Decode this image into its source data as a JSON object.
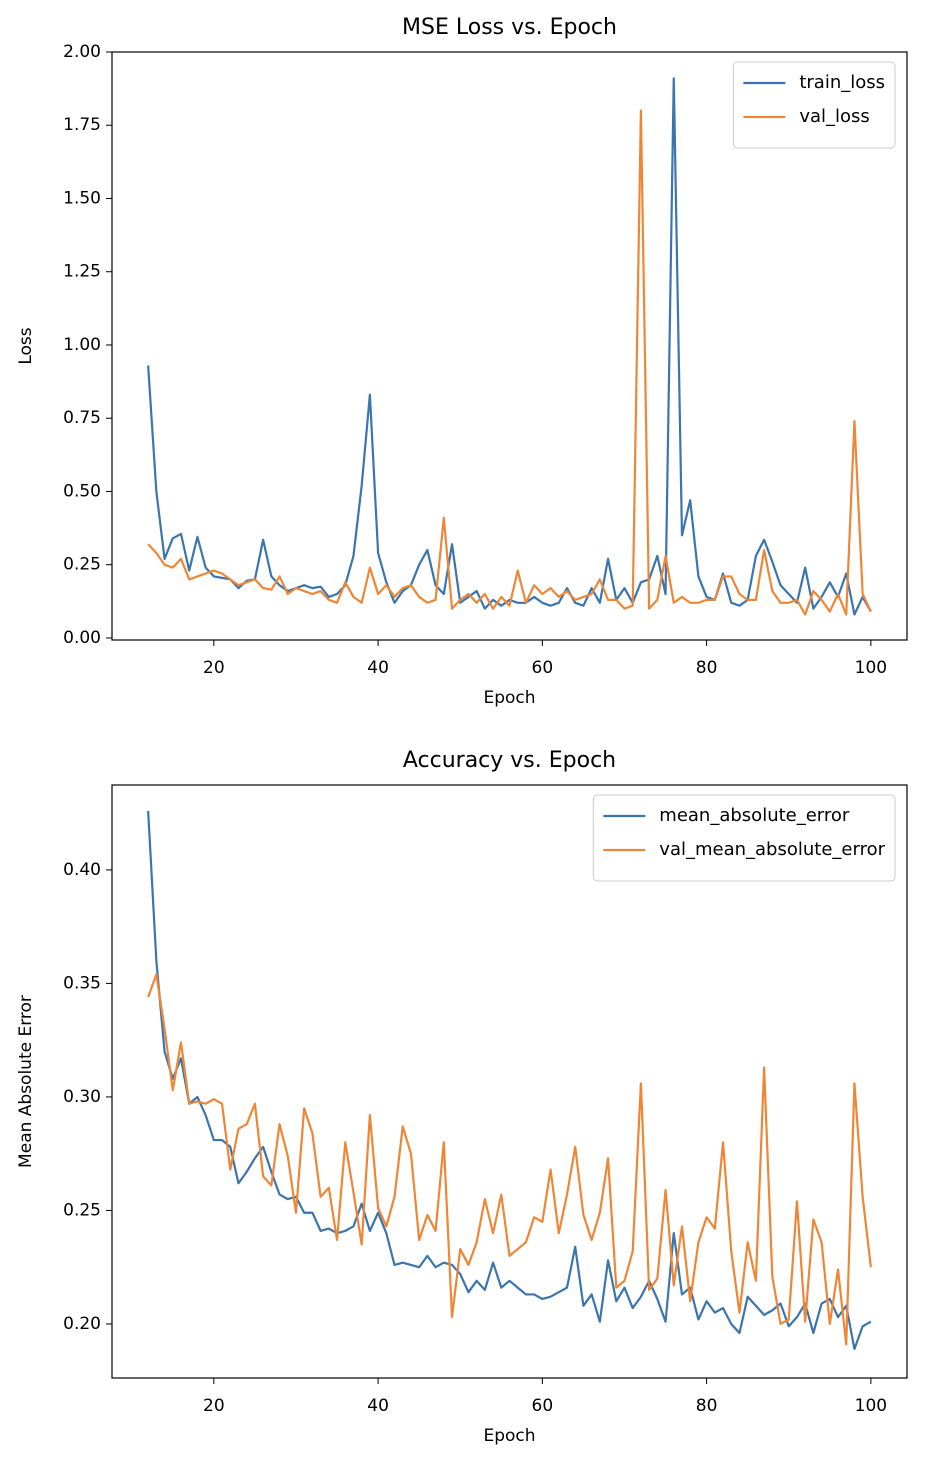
{
  "chart_data": [
    {
      "type": "line",
      "title": "MSE Loss vs. Epoch",
      "xlabel": "Epoch",
      "ylabel": "Loss",
      "x": [
        12,
        13,
        14,
        15,
        16,
        17,
        18,
        19,
        20,
        21,
        22,
        23,
        24,
        25,
        26,
        27,
        28,
        29,
        30,
        31,
        32,
        33,
        34,
        35,
        36,
        37,
        38,
        39,
        40,
        41,
        42,
        43,
        44,
        45,
        46,
        47,
        48,
        49,
        50,
        51,
        52,
        53,
        54,
        55,
        56,
        57,
        58,
        59,
        60,
        61,
        62,
        63,
        64,
        65,
        66,
        67,
        68,
        69,
        70,
        71,
        72,
        73,
        74,
        75,
        76,
        77,
        78,
        79,
        80,
        81,
        82,
        83,
        84,
        85,
        86,
        87,
        88,
        89,
        90,
        91,
        92,
        93,
        94,
        95,
        96,
        97,
        98,
        99,
        100
      ],
      "series": [
        {
          "name": "train_loss",
          "color": "#3b75af",
          "values": [
            0.93,
            0.5,
            0.27,
            0.34,
            0.355,
            0.23,
            0.345,
            0.24,
            0.21,
            0.205,
            0.2,
            0.17,
            0.195,
            0.2,
            0.335,
            0.21,
            0.18,
            0.16,
            0.17,
            0.18,
            0.17,
            0.175,
            0.14,
            0.15,
            0.18,
            0.28,
            0.52,
            0.83,
            0.29,
            0.19,
            0.12,
            0.16,
            0.18,
            0.25,
            0.3,
            0.18,
            0.15,
            0.32,
            0.12,
            0.14,
            0.16,
            0.1,
            0.13,
            0.11,
            0.13,
            0.12,
            0.12,
            0.14,
            0.12,
            0.11,
            0.12,
            0.17,
            0.12,
            0.11,
            0.17,
            0.12,
            0.27,
            0.13,
            0.17,
            0.12,
            0.19,
            0.2,
            0.28,
            0.15,
            1.91,
            0.35,
            0.47,
            0.21,
            0.14,
            0.13,
            0.22,
            0.12,
            0.11,
            0.13,
            0.28,
            0.335,
            0.26,
            0.18,
            0.15,
            0.12,
            0.24,
            0.1,
            0.14,
            0.19,
            0.14,
            0.22,
            0.08,
            0.14,
            0.09
          ]
        },
        {
          "name": "val_loss",
          "color": "#ef8636",
          "values": [
            0.32,
            0.29,
            0.25,
            0.24,
            0.27,
            0.2,
            0.21,
            0.22,
            0.23,
            0.22,
            0.2,
            0.18,
            0.19,
            0.2,
            0.17,
            0.165,
            0.21,
            0.15,
            0.17,
            0.16,
            0.15,
            0.16,
            0.13,
            0.12,
            0.19,
            0.14,
            0.12,
            0.24,
            0.15,
            0.18,
            0.14,
            0.17,
            0.18,
            0.14,
            0.12,
            0.13,
            0.41,
            0.1,
            0.13,
            0.15,
            0.12,
            0.15,
            0.1,
            0.14,
            0.11,
            0.23,
            0.12,
            0.18,
            0.15,
            0.17,
            0.14,
            0.16,
            0.13,
            0.14,
            0.15,
            0.2,
            0.13,
            0.13,
            0.1,
            0.11,
            1.8,
            0.1,
            0.13,
            0.28,
            0.12,
            0.14,
            0.12,
            0.12,
            0.13,
            0.13,
            0.21,
            0.21,
            0.15,
            0.13,
            0.13,
            0.3,
            0.16,
            0.12,
            0.12,
            0.13,
            0.08,
            0.16,
            0.13,
            0.09,
            0.15,
            0.08,
            0.74,
            0.15,
            0.09
          ]
        }
      ],
      "xlim": [
        7.6,
        104.4
      ],
      "ylim": [
        -0.007,
        2.0
      ],
      "xticks": [
        20,
        40,
        60,
        80,
        100
      ],
      "yticks": [
        {
          "value": 0,
          "label": "0.00"
        },
        0.25,
        {
          "value": 0.5,
          "label": "0.50"
        },
        0.75,
        {
          "value": 1,
          "label": "1.00"
        },
        1.25,
        {
          "value": 1.5,
          "label": "1.50"
        },
        1.75,
        {
          "value": 2,
          "label": "2.00"
        }
      ],
      "legend": "upper right"
    },
    {
      "type": "line",
      "title": "Accuracy vs. Epoch",
      "xlabel": "Epoch",
      "ylabel": "Mean Absolute Error",
      "x": [
        12,
        13,
        14,
        15,
        16,
        17,
        18,
        19,
        20,
        21,
        22,
        23,
        24,
        25,
        26,
        27,
        28,
        29,
        30,
        31,
        32,
        33,
        34,
        35,
        36,
        37,
        38,
        39,
        40,
        41,
        42,
        43,
        44,
        45,
        46,
        47,
        48,
        49,
        50,
        51,
        52,
        53,
        54,
        55,
        56,
        57,
        58,
        59,
        60,
        61,
        62,
        63,
        64,
        65,
        66,
        67,
        68,
        69,
        70,
        71,
        72,
        73,
        74,
        75,
        76,
        77,
        78,
        79,
        80,
        81,
        82,
        83,
        84,
        85,
        86,
        87,
        88,
        89,
        90,
        91,
        92,
        93,
        94,
        95,
        96,
        97,
        98,
        99,
        100
      ],
      "series": [
        {
          "name": "mean_absolute_error",
          "color": "#3b75af",
          "values": [
            0.426,
            0.36,
            0.32,
            0.308,
            0.317,
            0.297,
            0.3,
            0.292,
            0.281,
            0.281,
            0.278,
            0.262,
            0.267,
            0.273,
            0.278,
            0.267,
            0.257,
            0.255,
            0.256,
            0.249,
            0.249,
            0.241,
            0.242,
            0.24,
            0.241,
            0.243,
            0.253,
            0.241,
            0.249,
            0.24,
            0.226,
            0.227,
            0.226,
            0.225,
            0.23,
            0.225,
            0.227,
            0.226,
            0.222,
            0.214,
            0.219,
            0.215,
            0.227,
            0.216,
            0.219,
            0.216,
            0.213,
            0.213,
            0.211,
            0.212,
            0.214,
            0.216,
            0.234,
            0.208,
            0.213,
            0.201,
            0.228,
            0.21,
            0.216,
            0.207,
            0.212,
            0.219,
            0.211,
            0.201,
            0.24,
            0.213,
            0.216,
            0.202,
            0.21,
            0.205,
            0.207,
            0.2,
            0.196,
            0.212,
            0.208,
            0.204,
            0.206,
            0.209,
            0.199,
            0.203,
            0.209,
            0.196,
            0.209,
            0.211,
            0.203,
            0.208,
            0.189,
            0.199,
            0.201
          ]
        },
        {
          "name": "val_mean_absolute_error",
          "color": "#ef8636",
          "values": [
            0.344,
            0.354,
            0.33,
            0.303,
            0.324,
            0.297,
            0.298,
            0.297,
            0.299,
            0.297,
            0.268,
            0.286,
            0.288,
            0.297,
            0.265,
            0.261,
            0.288,
            0.274,
            0.249,
            0.295,
            0.284,
            0.256,
            0.26,
            0.237,
            0.28,
            0.258,
            0.235,
            0.292,
            0.251,
            0.243,
            0.256,
            0.287,
            0.275,
            0.237,
            0.248,
            0.241,
            0.28,
            0.203,
            0.233,
            0.226,
            0.236,
            0.255,
            0.24,
            0.257,
            0.23,
            0.233,
            0.236,
            0.247,
            0.245,
            0.268,
            0.24,
            0.257,
            0.278,
            0.248,
            0.237,
            0.249,
            0.273,
            0.216,
            0.219,
            0.232,
            0.306,
            0.215,
            0.22,
            0.259,
            0.217,
            0.243,
            0.21,
            0.236,
            0.247,
            0.242,
            0.28,
            0.232,
            0.205,
            0.236,
            0.219,
            0.313,
            0.221,
            0.2,
            0.202,
            0.254,
            0.201,
            0.246,
            0.236,
            0.2,
            0.224,
            0.191,
            0.306,
            0.256,
            0.225
          ]
        }
      ],
      "xlim": [
        7.6,
        104.4
      ],
      "ylim": [
        0.1762,
        0.4374
      ],
      "xticks": [
        20,
        40,
        60,
        80,
        100
      ],
      "yticks": [
        {
          "value": 0.2,
          "label": "0.20"
        },
        0.25,
        {
          "value": 0.3,
          "label": "0.30"
        },
        0.35,
        {
          "value": 0.4,
          "label": "0.40"
        }
      ],
      "legend": "upper right"
    }
  ]
}
